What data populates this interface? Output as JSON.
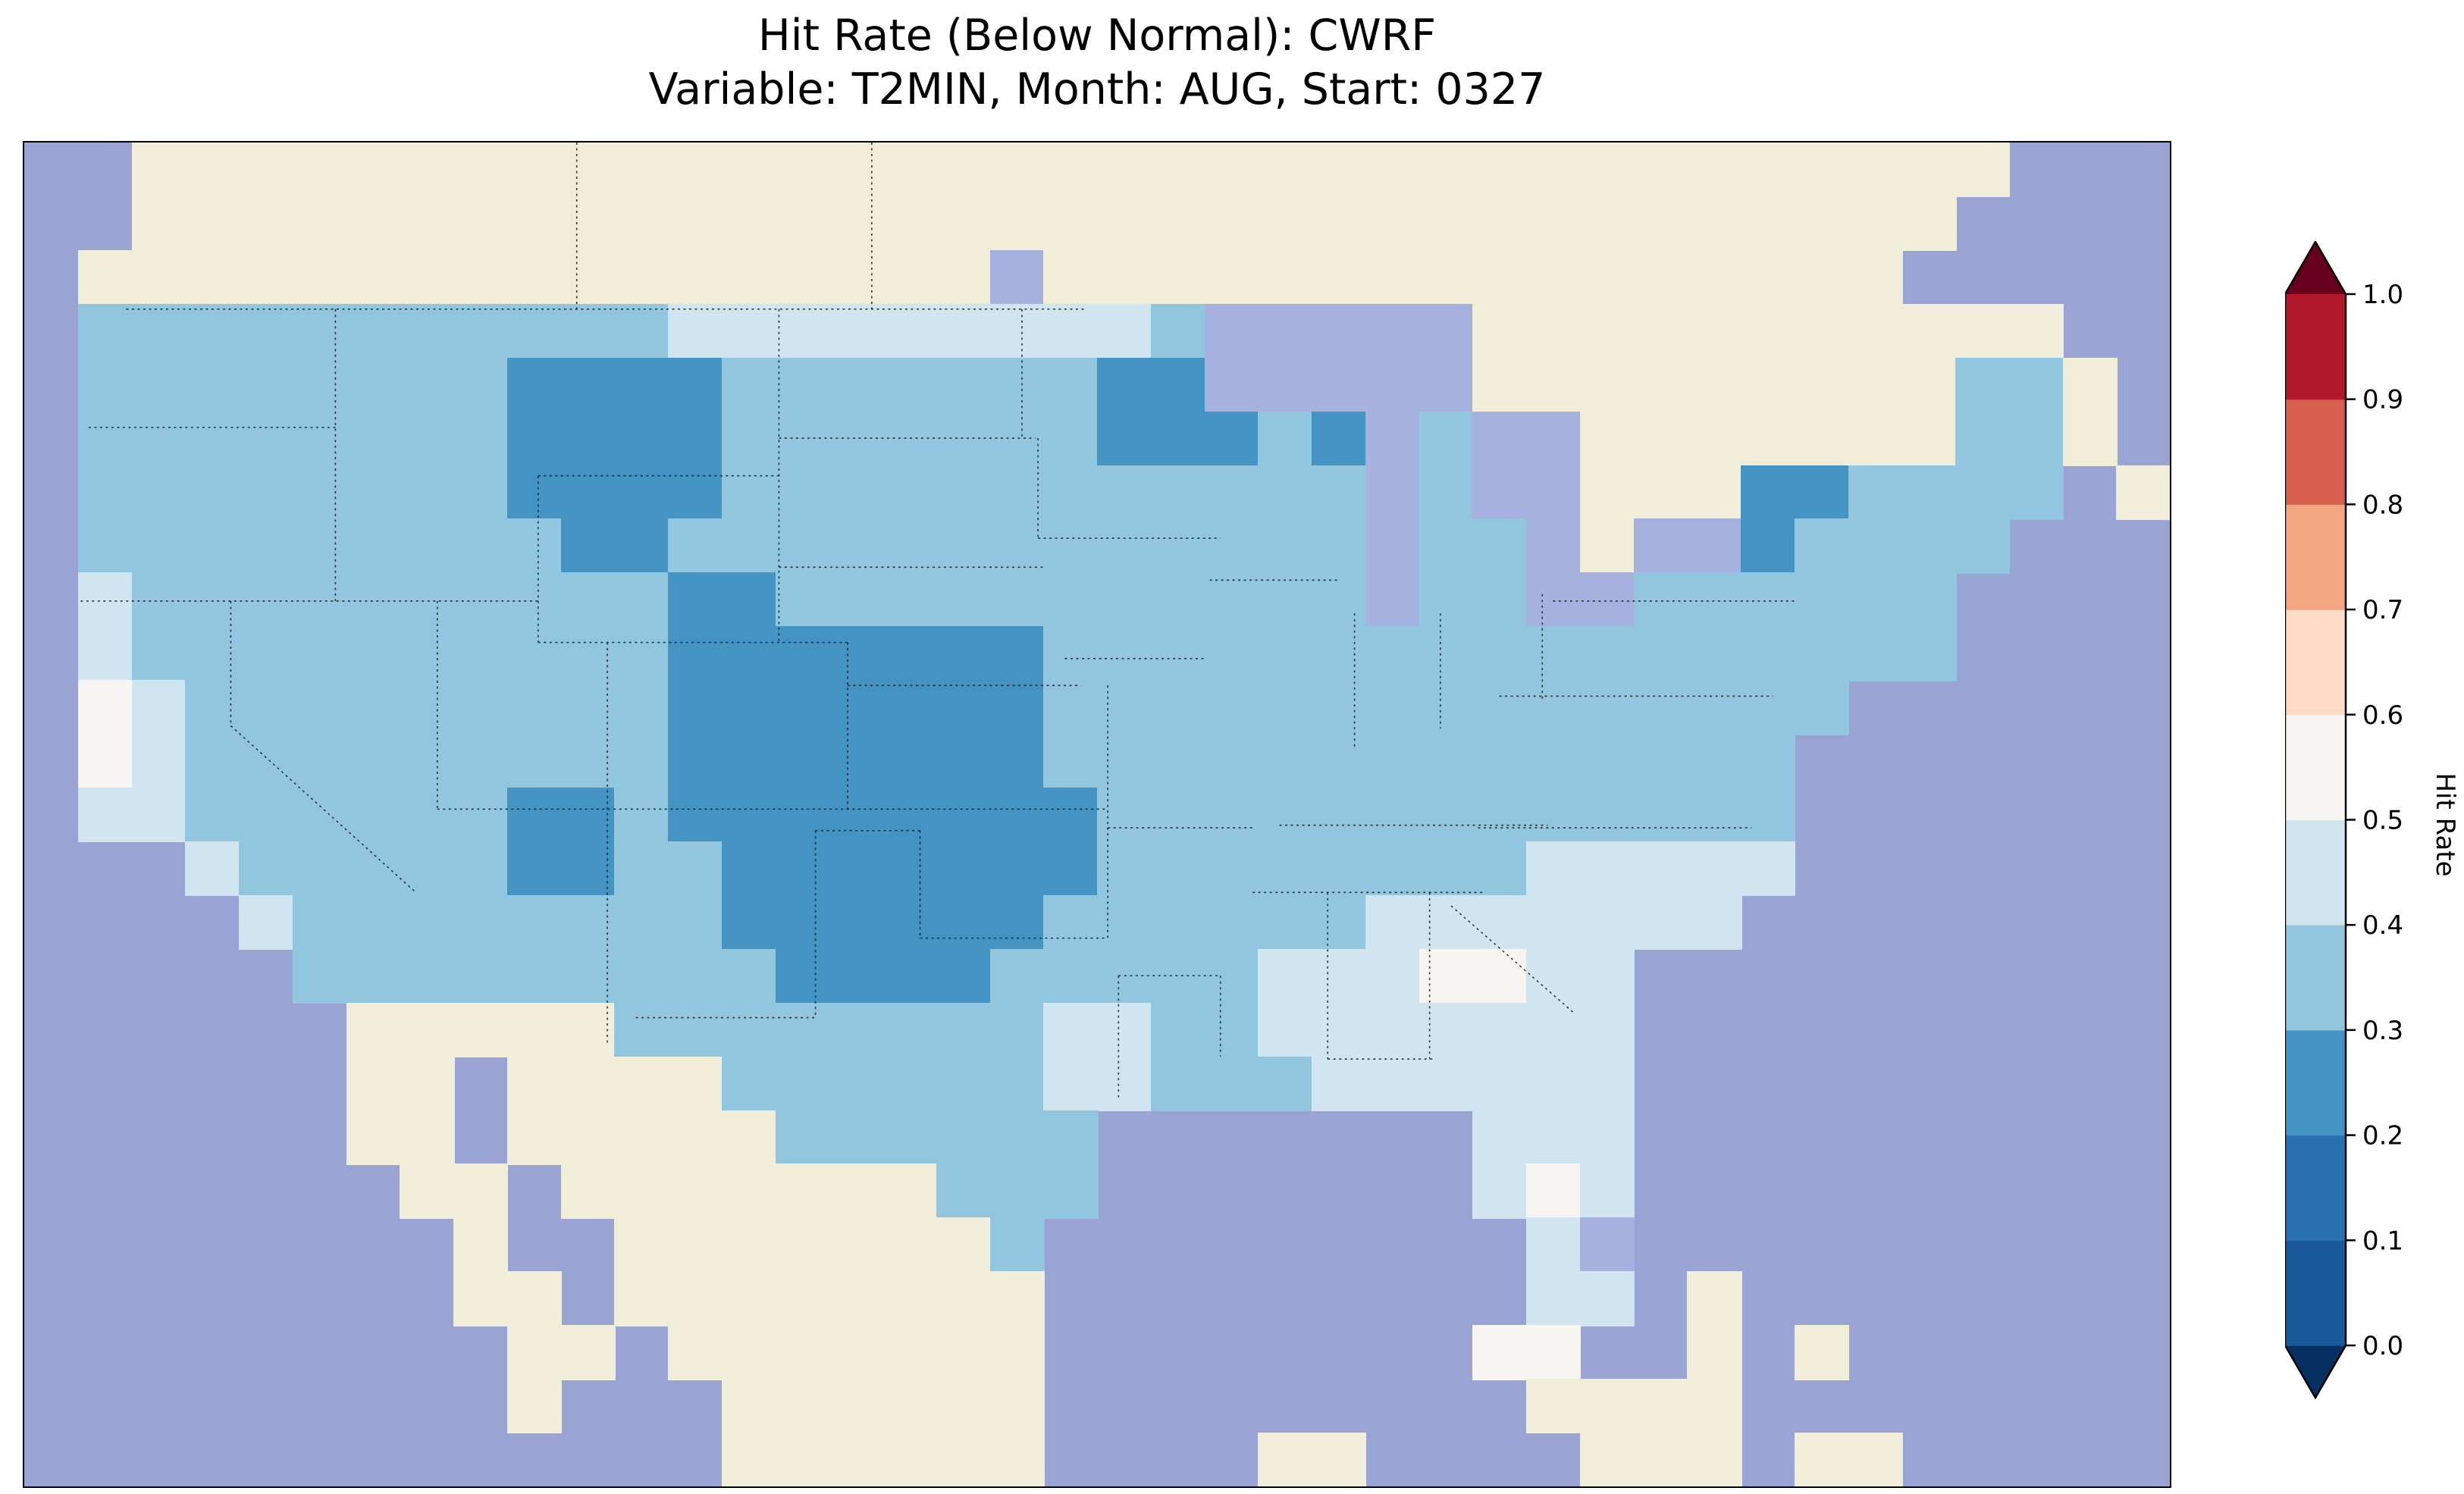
{
  "title": {
    "line1": "Hit Rate (Below Normal): CWRF",
    "line2": "Variable: T2MIN, Month: AUG, Start: 0327"
  },
  "chart_data": {
    "type": "heatmap",
    "title": "Hit Rate (Below Normal): CWRF",
    "subtitle": "Variable: T2MIN, Month: AUG, Start: 0327",
    "metric": "Hit Rate (Below Normal)",
    "model": "CWRF",
    "variable": "T2MIN",
    "month": "AUG",
    "start": "0327",
    "colorbar": {
      "label": "Hit Rate",
      "orientation": "vertical",
      "ticks": [
        "0.0",
        "0.1",
        "0.2",
        "0.3",
        "0.4",
        "0.5",
        "0.6",
        "0.7",
        "0.8",
        "0.9",
        "1.0"
      ],
      "extend_under_color": "#053061",
      "extend_over_color": "#67001f",
      "bins": [
        {
          "min": 0.0,
          "max": 0.1,
          "color": "#1a5a9b"
        },
        {
          "min": 0.1,
          "max": 0.2,
          "color": "#2a71b2"
        },
        {
          "min": 0.2,
          "max": 0.3,
          "color": "#4393c3"
        },
        {
          "min": 0.3,
          "max": 0.4,
          "color": "#92c5de"
        },
        {
          "min": 0.4,
          "max": 0.5,
          "color": "#d1e5f0"
        },
        {
          "min": 0.5,
          "max": 0.6,
          "color": "#f7f5f2"
        },
        {
          "min": 0.6,
          "max": 0.7,
          "color": "#fddbc7"
        },
        {
          "min": 0.7,
          "max": 0.8,
          "color": "#f4a582"
        },
        {
          "min": 0.8,
          "max": 0.9,
          "color": "#d6604d"
        },
        {
          "min": 0.9,
          "max": 1.0,
          "color": "#b2182b"
        }
      ]
    },
    "regions_summary": [
      {
        "region": "Central Plains (E Colorado, Kansas, Nebraska, Oklahoma, N Texas)",
        "hit_rate": "0.2-0.3"
      },
      {
        "region": "Central Montana / Wyoming",
        "hit_rate": "0.2-0.3"
      },
      {
        "region": "Upper Midwest near Lake Superior",
        "hit_rate": "0.2-0.3"
      },
      {
        "region": "Northern New York / New England",
        "hit_rate": "0.2-0.3"
      },
      {
        "region": "Northeastern Arizona",
        "hit_rate": "0.2-0.3"
      },
      {
        "region": "Most of the remaining CONUS",
        "hit_rate": "0.3-0.4"
      },
      {
        "region": "Southeast (Georgia, Carolinas, Florida, Gulf Coast), E Texas, Pacific coast",
        "hit_rate": "0.4-0.5"
      },
      {
        "region": "Interior Georgia, central Florida, coastal central California",
        "hit_rate": "0.5-0.6"
      }
    ],
    "map": {
      "extent": "Continental United States with surrounding Canada, Mexico, Gulf of Mexico and Atlantic",
      "ocean_color": "#99a3d4",
      "lake_color": "#a6b1df",
      "land_color": "#f0edd8",
      "cell_colors": {
        "a": "#4393c3",
        "b": "#92c5de",
        "c": "#d1e5f0",
        "d": "#f7f5f2"
      },
      "legend": {
        ".": "ocean",
        "L": "non-US land",
        "k": "lake",
        "a": "hit rate 0.2-0.3",
        "b": "hit rate 0.3-0.4",
        "c": "hit rate 0.4-0.5",
        "d": "hit rate 0.5-0.6"
      },
      "grid_cols": 40,
      "grid_rows": 25,
      "rows": [
        "..LLLLLLLLLLLLLLLLLLLLLLLLLLLLLLLLLLL...",
        "..LLLLLLLLLLLLLLLLLLLLLLLLLLLLLLLLLL....",
        ".LLLLLLLLLLLLLLLLLkLLLLLLLLLLLLLLLL.....",
        ".bbbbbbbbbbbcccccccccbkkkkkLLLLLLLLLLL..",
        ".bbbbbbbbaaaabbbbbbbaakkkkkLLLLLLLLLbbL.",
        ".bbbbbbbbaaaabbbbbbbaaabakbkkLLLLLLLbbL.",
        ".bbbbbbbbaaaabbbbbbbbbbbbkbkkLLLaabbbb.L",
        ".bbbbbbbbbaabbbbbbbbbbbbbkbbkLkkabbbb...",
        ".cbbbbbbbbbbaabbbbbbbbbbbkbbkkbbbbbb....",
        ".cbbbbbbbbbbaaaaaaabbbbbbbbbbbbbbbbb....",
        ".dcbbbbbbbbbaaaaaaabbbbbbbbbbbbbbb......",
        ".dcbbbbbbbbbaaaaaaabbbbbbbbbbbbbb.......",
        ".ccbbbbbbaabaaaaaaaabbbbbbbbbbbbb.......",
        "...cbbbbbaabbaaaaaaabbbbbbbbccccc.......",
        "....cbbbbbbbbaaaaaabbbbbbccccccc........",
        ".....bbbbbbbbbaaaabbbbbcccddcc..........",
        "......LLLLLbbbbbbbbccbbccccccc..........",
        "......LL.LLLLbbbbbbccbbbcccccc..........",
        "......LL.LLLLLbbbbbb.......ccc..........",
        ".......LL.LLLLLLLbbb.......cdc..........",
        "........L..LLLLLLLb.........ck..........",
        "........LL.LLLLLLLL.........cc.L........",
        ".........LL.LLLLLLL........dd..L.L......",
        ".........L...LLLLLL.........LLLL........",
        ".............LLLLLL....LL....LLL.LL....."
      ]
    }
  }
}
